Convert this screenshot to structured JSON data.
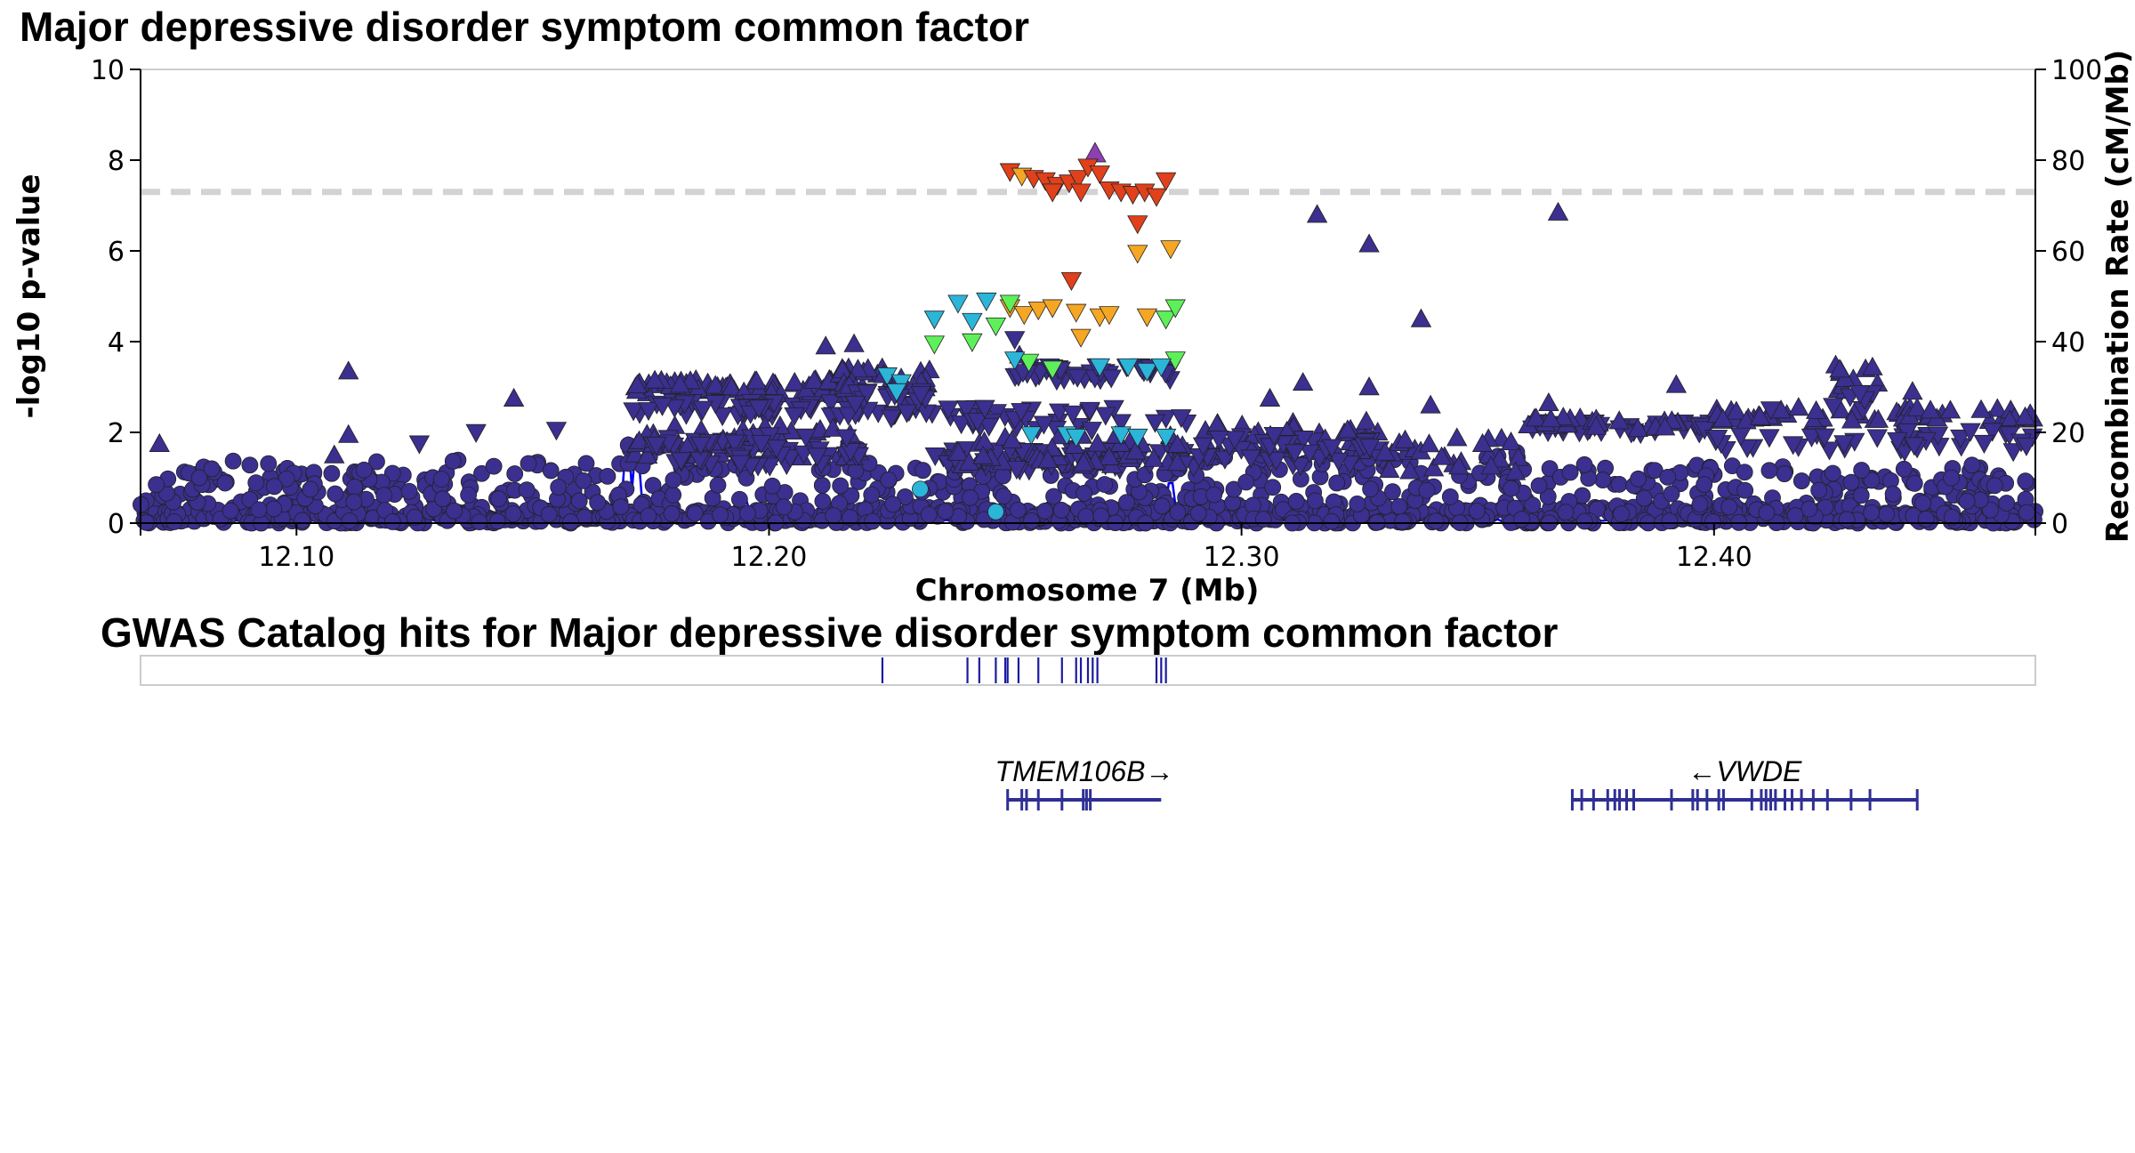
{
  "chart_data": {
    "type": "scatter",
    "title": "Major depressive disorder symptom common factor",
    "xlabel": "Chromosome 7 (Mb)",
    "ylabel": "-log10 p-value",
    "y2label": "Recombination Rate (cM/Mb)",
    "xlim": [
      12.067,
      12.468
    ],
    "ylim": [
      0,
      10
    ],
    "y2lim": [
      0,
      100
    ],
    "x_ticks": [
      "12.10",
      "12.20",
      "12.30",
      "12.40"
    ],
    "x_tick_values": [
      12.1,
      12.2,
      12.3,
      12.4
    ],
    "y_ticks": [
      "0",
      "2",
      "4",
      "6",
      "8",
      "10"
    ],
    "y2_ticks": [
      "0",
      "20",
      "40",
      "60",
      "80",
      "100"
    ],
    "significance_line": 7.3,
    "grid": false,
    "colors": {
      "background_snps": "#3b2f8f",
      "ld_teal": "#2bb5d8",
      "ld_green": "#5ef05a",
      "ld_orange": "#f5a623",
      "ld_red": "#e0401a",
      "lead_snp": "#8e3fb0",
      "recombination": "#0000ee",
      "threshold": "#d3d3d3",
      "gene": "#2f2f95",
      "catalog_hits": "#1a1aa0"
    },
    "highlight_points": [
      {
        "x": 12.269,
        "y": 8.15,
        "shape": "up",
        "color": "#8e3fb0"
      },
      {
        "x": 12.251,
        "y": 7.75,
        "shape": "down",
        "color": "#e0401a"
      },
      {
        "x": 12.2535,
        "y": 7.65,
        "shape": "down",
        "color": "#f5a623"
      },
      {
        "x": 12.256,
        "y": 7.6,
        "shape": "down",
        "color": "#e0401a"
      },
      {
        "x": 12.2585,
        "y": 7.55,
        "shape": "down",
        "color": "#e0401a"
      },
      {
        "x": 12.261,
        "y": 7.45,
        "shape": "down",
        "color": "#e0401a"
      },
      {
        "x": 12.2635,
        "y": 7.5,
        "shape": "down",
        "color": "#e0401a"
      },
      {
        "x": 12.2655,
        "y": 7.6,
        "shape": "down",
        "color": "#e0401a"
      },
      {
        "x": 12.2675,
        "y": 7.85,
        "shape": "down",
        "color": "#e0401a"
      },
      {
        "x": 12.27,
        "y": 7.7,
        "shape": "down",
        "color": "#e0401a"
      },
      {
        "x": 12.272,
        "y": 7.35,
        "shape": "down",
        "color": "#e0401a"
      },
      {
        "x": 12.2745,
        "y": 7.3,
        "shape": "down",
        "color": "#e0401a"
      },
      {
        "x": 12.277,
        "y": 7.25,
        "shape": "down",
        "color": "#e0401a"
      },
      {
        "x": 12.2795,
        "y": 7.3,
        "shape": "down",
        "color": "#e0401a"
      },
      {
        "x": 12.282,
        "y": 7.2,
        "shape": "down",
        "color": "#e0401a"
      },
      {
        "x": 12.284,
        "y": 7.55,
        "shape": "down",
        "color": "#e0401a"
      },
      {
        "x": 12.266,
        "y": 7.3,
        "shape": "down",
        "color": "#e0401a"
      },
      {
        "x": 12.26,
        "y": 7.3,
        "shape": "down",
        "color": "#e0401a"
      },
      {
        "x": 12.278,
        "y": 6.6,
        "shape": "down",
        "color": "#e0401a"
      },
      {
        "x": 12.278,
        "y": 5.95,
        "shape": "down",
        "color": "#f5a623"
      },
      {
        "x": 12.285,
        "y": 6.05,
        "shape": "down",
        "color": "#f5a623"
      },
      {
        "x": 12.264,
        "y": 5.35,
        "shape": "down",
        "color": "#e0401a"
      },
      {
        "x": 12.251,
        "y": 4.75,
        "shape": "down",
        "color": "#f5a623"
      },
      {
        "x": 12.254,
        "y": 4.6,
        "shape": "down",
        "color": "#f5a623"
      },
      {
        "x": 12.257,
        "y": 4.7,
        "shape": "down",
        "color": "#f5a623"
      },
      {
        "x": 12.26,
        "y": 4.75,
        "shape": "down",
        "color": "#f5a623"
      },
      {
        "x": 12.265,
        "y": 4.65,
        "shape": "down",
        "color": "#f5a623"
      },
      {
        "x": 12.27,
        "y": 4.55,
        "shape": "down",
        "color": "#f5a623"
      },
      {
        "x": 12.272,
        "y": 4.6,
        "shape": "down",
        "color": "#f5a623"
      },
      {
        "x": 12.28,
        "y": 4.55,
        "shape": "down",
        "color": "#f5a623"
      },
      {
        "x": 12.266,
        "y": 4.1,
        "shape": "down",
        "color": "#f5a623"
      },
      {
        "x": 12.235,
        "y": 4.5,
        "shape": "down",
        "color": "#2bb5d8"
      },
      {
        "x": 12.24,
        "y": 4.85,
        "shape": "down",
        "color": "#2bb5d8"
      },
      {
        "x": 12.246,
        "y": 4.9,
        "shape": "down",
        "color": "#2bb5d8"
      },
      {
        "x": 12.243,
        "y": 4.45,
        "shape": "down",
        "color": "#2bb5d8"
      },
      {
        "x": 12.248,
        "y": 4.35,
        "shape": "down",
        "color": "#5ef05a"
      },
      {
        "x": 12.235,
        "y": 3.95,
        "shape": "down",
        "color": "#5ef05a"
      },
      {
        "x": 12.251,
        "y": 4.85,
        "shape": "down",
        "color": "#5ef05a"
      },
      {
        "x": 12.284,
        "y": 4.5,
        "shape": "down",
        "color": "#5ef05a"
      },
      {
        "x": 12.286,
        "y": 4.75,
        "shape": "down",
        "color": "#5ef05a"
      },
      {
        "x": 12.243,
        "y": 4.0,
        "shape": "down",
        "color": "#5ef05a"
      },
      {
        "x": 12.255,
        "y": 3.55,
        "shape": "down",
        "color": "#5ef05a"
      },
      {
        "x": 12.26,
        "y": 3.4,
        "shape": "down",
        "color": "#5ef05a"
      },
      {
        "x": 12.286,
        "y": 3.6,
        "shape": "down",
        "color": "#5ef05a"
      },
      {
        "x": 12.27,
        "y": 3.45,
        "shape": "down",
        "color": "#2bb5d8"
      },
      {
        "x": 12.276,
        "y": 3.45,
        "shape": "down",
        "color": "#2bb5d8"
      },
      {
        "x": 12.28,
        "y": 3.35,
        "shape": "down",
        "color": "#2bb5d8"
      },
      {
        "x": 12.283,
        "y": 3.45,
        "shape": "down",
        "color": "#2bb5d8"
      },
      {
        "x": 12.252,
        "y": 3.6,
        "shape": "down",
        "color": "#2bb5d8"
      },
      {
        "x": 12.225,
        "y": 3.25,
        "shape": "down",
        "color": "#2bb5d8"
      },
      {
        "x": 12.228,
        "y": 3.1,
        "shape": "down",
        "color": "#2bb5d8"
      },
      {
        "x": 12.227,
        "y": 2.9,
        "shape": "down",
        "color": "#2bb5d8"
      },
      {
        "x": 12.2555,
        "y": 1.95,
        "shape": "down",
        "color": "#2bb5d8"
      },
      {
        "x": 12.263,
        "y": 1.95,
        "shape": "down",
        "color": "#2bb5d8"
      },
      {
        "x": 12.265,
        "y": 1.9,
        "shape": "down",
        "color": "#2bb5d8"
      },
      {
        "x": 12.2745,
        "y": 1.95,
        "shape": "down",
        "color": "#2bb5d8"
      },
      {
        "x": 12.278,
        "y": 1.9,
        "shape": "down",
        "color": "#2bb5d8"
      },
      {
        "x": 12.284,
        "y": 1.9,
        "shape": "down",
        "color": "#2bb5d8"
      },
      {
        "x": 12.232,
        "y": 0.75,
        "shape": "circle",
        "color": "#2bb5d8"
      },
      {
        "x": 12.248,
        "y": 0.25,
        "shape": "circle",
        "color": "#2bb5d8"
      }
    ],
    "background_markers": [
      {
        "x": 12.111,
        "y": 3.35,
        "shape": "up"
      },
      {
        "x": 12.111,
        "y": 1.95,
        "shape": "up"
      },
      {
        "x": 12.108,
        "y": 1.5,
        "shape": "up"
      },
      {
        "x": 12.071,
        "y": 1.75,
        "shape": "up"
      },
      {
        "x": 12.126,
        "y": 1.75,
        "shape": "down"
      },
      {
        "x": 12.138,
        "y": 2.0,
        "shape": "down"
      },
      {
        "x": 12.146,
        "y": 2.75,
        "shape": "up"
      },
      {
        "x": 12.155,
        "y": 2.05,
        "shape": "down"
      },
      {
        "x": 12.316,
        "y": 6.8,
        "shape": "up"
      },
      {
        "x": 12.327,
        "y": 6.15,
        "shape": "up"
      },
      {
        "x": 12.367,
        "y": 6.85,
        "shape": "up"
      },
      {
        "x": 12.338,
        "y": 4.5,
        "shape": "up"
      },
      {
        "x": 12.327,
        "y": 3.0,
        "shape": "up"
      },
      {
        "x": 12.313,
        "y": 3.1,
        "shape": "up"
      },
      {
        "x": 12.306,
        "y": 2.75,
        "shape": "up"
      },
      {
        "x": 12.34,
        "y": 2.6,
        "shape": "up"
      },
      {
        "x": 12.351,
        "y": 1.75,
        "shape": "up"
      },
      {
        "x": 12.365,
        "y": 2.65,
        "shape": "up"
      },
      {
        "x": 12.392,
        "y": 3.05,
        "shape": "up"
      },
      {
        "x": 12.412,
        "y": 2.5,
        "shape": "down"
      },
      {
        "x": 12.442,
        "y": 2.9,
        "shape": "up"
      },
      {
        "x": 12.212,
        "y": 3.9,
        "shape": "up"
      },
      {
        "x": 12.218,
        "y": 3.95,
        "shape": "up"
      },
      {
        "x": 12.253,
        "y": 3.7,
        "shape": "up"
      },
      {
        "x": 12.252,
        "y": 4.05,
        "shape": "down"
      }
    ],
    "background_band_note": "dense background SNPs (circles below, triangles above) spanning the region",
    "recombination_peaks": [
      {
        "x": 12.07,
        "y": 1
      },
      {
        "x": 12.155,
        "y": 4
      },
      {
        "x": 12.17,
        "y": 22
      },
      {
        "x": 12.172,
        "y": 20
      },
      {
        "x": 12.177,
        "y": 9
      },
      {
        "x": 12.195,
        "y": 6
      },
      {
        "x": 12.203,
        "y": 5
      },
      {
        "x": 12.232,
        "y": 7
      },
      {
        "x": 12.258,
        "y": 3
      },
      {
        "x": 12.285,
        "y": 12
      },
      {
        "x": 12.306,
        "y": 2
      },
      {
        "x": 12.424,
        "y": 5
      },
      {
        "x": 12.43,
        "y": 4
      },
      {
        "x": 12.445,
        "y": 3
      },
      {
        "x": 12.462,
        "y": 2
      }
    ]
  },
  "gwas_catalog": {
    "title": "GWAS Catalog hits for Major depressive disorder symptom common factor",
    "hits_mb": [
      12.224,
      12.242,
      12.2445,
      12.248,
      12.25,
      12.2505,
      12.2528,
      12.257,
      12.262,
      12.265,
      12.266,
      12.2675,
      12.2685,
      12.2695,
      12.282,
      12.283,
      12.284
    ]
  },
  "genes": [
    {
      "label": "TMEM106B→",
      "start": 12.2505,
      "end": 12.283,
      "exons": [
        12.2505,
        12.2535,
        12.2545,
        12.257,
        12.262,
        12.2665,
        12.2672,
        12.268
      ]
    },
    {
      "label": "←VWDE",
      "start": 12.37,
      "end": 12.443,
      "exons": [
        12.37,
        12.372,
        12.3745,
        12.3775,
        12.379,
        12.38,
        12.3815,
        12.383,
        12.391,
        12.3955,
        12.3965,
        12.3985,
        12.401,
        12.402,
        12.408,
        12.41,
        12.411,
        12.412,
        12.413,
        12.415,
        12.4165,
        12.4185,
        12.421,
        12.424,
        12.429,
        12.433,
        12.443
      ]
    }
  ]
}
